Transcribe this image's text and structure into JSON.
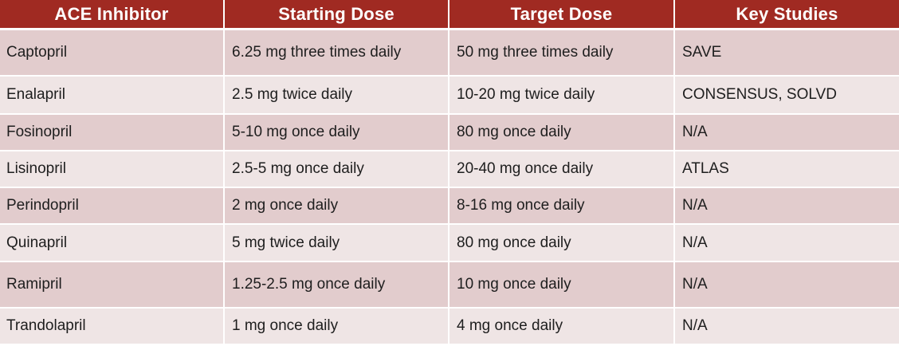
{
  "table": {
    "headers": [
      "ACE Inhibitor",
      "Starting Dose",
      "Target Dose",
      "Key Studies"
    ],
    "rows": [
      [
        "Captopril",
        "6.25 mg three times daily",
        "50 mg three times daily",
        "SAVE"
      ],
      [
        "Enalapril",
        "2.5 mg twice daily",
        "10-20 mg twice daily",
        "CONSENSUS, SOLVD"
      ],
      [
        "Fosinopril",
        "5-10 mg once daily",
        "80 mg once daily",
        "N/A"
      ],
      [
        "Lisinopril",
        "2.5-5 mg once daily",
        "20-40 mg once daily",
        "ATLAS"
      ],
      [
        "Perindopril",
        "2 mg once daily",
        "8-16 mg once daily",
        "N/A"
      ],
      [
        "Quinapril",
        "5 mg twice daily",
        "80 mg once daily",
        "N/A"
      ],
      [
        "Ramipril",
        "1.25-2.5 mg once daily",
        "10 mg once daily",
        "N/A"
      ],
      [
        "Trandolapril",
        "1 mg once daily",
        "4 mg once daily",
        "N/A"
      ]
    ]
  },
  "colors": {
    "header_bg": "#a02a22",
    "header_text": "#ffffff",
    "row_odd_bg": "#e2cccd",
    "row_even_bg": "#efe5e5",
    "body_text": "#1e1e1e"
  }
}
